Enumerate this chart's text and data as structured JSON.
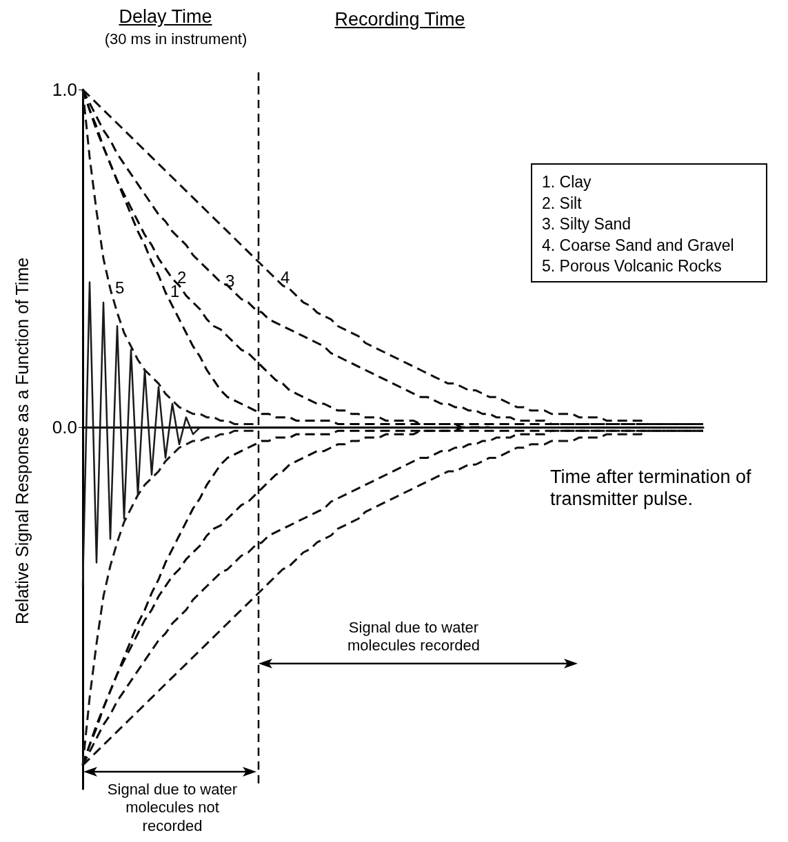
{
  "chart_data": {
    "type": "line",
    "xlabel": "Time after termination of transmitter pulse.",
    "ylabel": "Relative Signal Response as a Function of Time",
    "annotations": [
      "Delay Time",
      "(30 ms in instrument)",
      "Recording Time",
      "Signal due to water molecules recorded",
      "Signal due to water molecules not recorded",
      "1.  Clay",
      "2.  Silt",
      "3.  Silty Sand",
      "4.  Coarse Sand and Gravel",
      "5.  Porous Volcanic Rocks"
    ],
    "categories": [
      null,
      null,
      null,
      null,
      null,
      null,
      null,
      null,
      null,
      null,
      null,
      null,
      null,
      null,
      null,
      null,
      null,
      null,
      null,
      null,
      null,
      null,
      null,
      null,
      null,
      null,
      null,
      null,
      null,
      null,
      null,
      null,
      null,
      null,
      null,
      null,
      null,
      null,
      null,
      null,
      null,
      null,
      null,
      null,
      null,
      null,
      null,
      null,
      null,
      null,
      null,
      null,
      null,
      null,
      null,
      null,
      null,
      null,
      null,
      null,
      null,
      null,
      null,
      null,
      null,
      null,
      null,
      null,
      null,
      null,
      null,
      null,
      null,
      null,
      null,
      null,
      null,
      null,
      null,
      null,
      null,
      null,
      null,
      null,
      null,
      null,
      null,
      null,
      null,
      null,
      null
    ],
    "ylim": [
      -1.07,
      1.0
    ],
    "yticks": [
      {
        "value": 0,
        "label": "0.0"
      },
      {
        "value": 1,
        "label": "1.0"
      }
    ],
    "tick_labels": "y",
    "grid": false,
    "legend": false,
    "marker": "none",
    "series": [
      {
        "name": "1",
        "color": "#000000",
        "line_style": "dashed",
        "values": [
          1.0,
          0.94,
          0.89,
          0.83,
          0.78,
          0.73,
          0.68,
          0.63,
          0.58,
          0.54,
          0.49,
          0.45,
          0.4,
          0.36,
          0.32,
          0.28,
          0.24,
          0.21,
          0.17,
          0.14,
          0.11,
          0.09,
          0.08,
          0.07,
          0.06,
          0.05,
          0.04,
          0.04,
          0.03,
          0.03,
          0.03,
          0.02,
          0.02,
          0.02,
          0.02,
          0.02,
          0.02,
          0.01,
          0.01,
          0.01,
          0.01,
          0.01,
          0.01,
          0.01,
          0.01,
          0.01,
          0.01,
          0.01,
          0.01,
          0.01,
          0.01,
          0.01,
          0.01,
          0.01,
          0.01,
          0,
          0,
          0,
          0,
          0,
          null,
          null,
          null,
          null,
          null,
          null,
          null,
          null,
          null,
          null,
          null,
          null,
          null,
          null,
          null,
          null,
          null,
          null,
          null,
          null,
          null,
          null,
          null,
          null,
          null,
          null,
          null,
          null,
          null,
          null,
          null
        ]
      },
      {
        "name": "2",
        "color": "#050505",
        "line_style": "dashed",
        "values": [
          1.0,
          0.94,
          0.88,
          0.83,
          0.78,
          0.73,
          0.69,
          0.65,
          0.61,
          0.57,
          0.54,
          0.5,
          0.47,
          0.44,
          0.42,
          0.39,
          0.37,
          0.35,
          0.32,
          0.3,
          0.29,
          0.27,
          0.25,
          0.23,
          0.22,
          0.2,
          0.18,
          0.16,
          0.14,
          0.13,
          0.11,
          0.1,
          0.09,
          0.08,
          0.07,
          0.07,
          0.06,
          0.05,
          0.05,
          0.04,
          0.04,
          0.03,
          0.03,
          0.03,
          0.02,
          0.02,
          0.02,
          0.02,
          0.02,
          0.01,
          0.01,
          0.01,
          0.01,
          0.01,
          0.01,
          0.01,
          0.01,
          0.01,
          0.01,
          0.01,
          0.01,
          0.01,
          0.01,
          0.01,
          0.01,
          0.01,
          0.01,
          0.01,
          0.01,
          0.01,
          0.01,
          0.01,
          0.01,
          0.01,
          0.01,
          0.01,
          0.01,
          0.01,
          0.01,
          0.01,
          0.01,
          0.01,
          0.01,
          0.01,
          0.01,
          0.01,
          0.01,
          0.01,
          0.01,
          0.01,
          0.01
        ]
      },
      {
        "name": "3",
        "color": "#0a0a0a",
        "line_style": "dashed",
        "values": [
          1.0,
          0.96,
          0.92,
          0.88,
          0.85,
          0.81,
          0.78,
          0.75,
          0.72,
          0.69,
          0.66,
          0.63,
          0.61,
          0.58,
          0.56,
          0.54,
          0.51,
          0.49,
          0.47,
          0.45,
          0.43,
          0.42,
          0.4,
          0.38,
          0.37,
          0.35,
          0.34,
          0.32,
          0.31,
          0.3,
          0.29,
          0.28,
          0.27,
          0.26,
          0.25,
          0.24,
          0.22,
          0.21,
          0.2,
          0.19,
          0.18,
          0.17,
          0.16,
          0.15,
          0.14,
          0.13,
          0.12,
          0.11,
          0.1,
          0.09,
          0.09,
          0.08,
          0.07,
          0.07,
          0.06,
          0.06,
          0.05,
          0.05,
          0.04,
          0.04,
          0.03,
          0.03,
          0.03,
          0.02,
          0.02,
          0.02,
          0.02,
          0.02,
          0.01,
          0.01,
          0.01,
          0.01,
          0.01,
          0.01,
          0.01,
          0.01,
          0.01,
          0.01,
          0.01,
          0.01,
          0.01,
          0.01,
          0.01,
          0.01,
          0.01,
          0.01,
          0.01,
          0.01,
          0.01,
          0.01,
          0.01
        ]
      },
      {
        "name": "4",
        "color": "#0f0f0f",
        "line_style": "dashed",
        "values": [
          1.0,
          0.98,
          0.96,
          0.94,
          0.92,
          0.9,
          0.88,
          0.86,
          0.84,
          0.82,
          0.8,
          0.78,
          0.76,
          0.74,
          0.72,
          0.7,
          0.68,
          0.66,
          0.64,
          0.62,
          0.6,
          0.58,
          0.56,
          0.54,
          0.52,
          0.5,
          0.48,
          0.46,
          0.44,
          0.42,
          0.41,
          0.39,
          0.37,
          0.36,
          0.34,
          0.33,
          0.32,
          0.3,
          0.29,
          0.28,
          0.27,
          0.25,
          0.24,
          0.23,
          0.22,
          0.21,
          0.2,
          0.19,
          0.18,
          0.17,
          0.16,
          0.15,
          0.14,
          0.13,
          0.13,
          0.12,
          0.11,
          0.11,
          0.1,
          0.09,
          0.09,
          0.08,
          0.07,
          0.06,
          0.06,
          0.05,
          0.05,
          0.05,
          0.04,
          0.04,
          0.04,
          0.04,
          0.03,
          0.03,
          0.03,
          0.03,
          0.02,
          0.02,
          0.02,
          0.02,
          0.02,
          0.02,
          0.01,
          0.01,
          0.01,
          0.01,
          0.01,
          0.01,
          0.01,
          0.01,
          0.01
        ]
      },
      {
        "name": "5",
        "color": "#141414",
        "line_style": "dashed",
        "values": [
          1.0,
          0.8,
          0.64,
          0.5,
          0.41,
          0.34,
          0.28,
          0.24,
          0.2,
          0.17,
          0.15,
          0.13,
          0.1,
          0.08,
          0.06,
          0.05,
          0.04,
          0.04,
          0.03,
          0.03,
          0.02,
          0.02,
          0.01,
          0.01,
          0.01,
          0.01,
          null,
          null,
          null,
          null,
          null,
          null,
          null,
          null,
          null,
          null,
          null,
          null,
          null,
          null,
          null,
          null,
          null,
          null,
          null,
          null,
          null,
          null,
          null,
          null,
          null,
          null,
          null,
          null,
          null,
          null,
          null,
          null,
          null,
          null,
          null,
          null,
          null,
          null,
          null,
          null,
          null,
          null,
          null,
          null,
          null,
          null,
          null,
          null,
          null,
          null,
          null,
          null,
          null,
          null,
          null,
          null,
          null,
          null,
          null,
          null,
          null,
          null,
          null,
          null,
          null
        ]
      },
      {
        "color": "#030303",
        "line_style": "dashed",
        "values": [
          -1.0,
          -0.94,
          -0.89,
          -0.83,
          -0.78,
          -0.73,
          -0.68,
          -0.63,
          -0.58,
          -0.54,
          -0.49,
          -0.45,
          -0.4,
          -0.36,
          -0.32,
          -0.28,
          -0.24,
          -0.21,
          -0.17,
          -0.14,
          -0.11,
          -0.09,
          -0.08,
          -0.07,
          -0.06,
          -0.05,
          -0.04,
          -0.04,
          -0.03,
          -0.03,
          -0.03,
          -0.02,
          -0.02,
          -0.02,
          -0.02,
          -0.02,
          -0.02,
          -0.01,
          -0.01,
          -0.01,
          -0.01,
          -0.01,
          -0.01,
          -0.01,
          -0.01,
          -0.01,
          -0.01,
          -0.01,
          -0.01,
          -0.01,
          -0.01,
          -0.01,
          -0.01,
          -0.01,
          -0.01,
          0,
          0,
          0,
          0,
          0,
          null,
          null,
          null,
          null,
          null,
          null,
          null,
          null,
          null,
          null,
          null,
          null,
          null,
          null,
          null,
          null,
          null,
          null,
          null,
          null,
          null,
          null,
          null,
          null,
          null,
          null,
          null,
          null,
          null,
          null,
          null
        ]
      },
      {
        "color": "#080808",
        "line_style": "dashed",
        "values": [
          -1.0,
          -0.94,
          -0.88,
          -0.83,
          -0.78,
          -0.73,
          -0.69,
          -0.65,
          -0.61,
          -0.57,
          -0.54,
          -0.5,
          -0.47,
          -0.44,
          -0.42,
          -0.39,
          -0.37,
          -0.35,
          -0.32,
          -0.3,
          -0.29,
          -0.27,
          -0.25,
          -0.23,
          -0.22,
          -0.2,
          -0.18,
          -0.16,
          -0.14,
          -0.13,
          -0.11,
          -0.1,
          -0.09,
          -0.08,
          -0.07,
          -0.07,
          -0.06,
          -0.05,
          -0.05,
          -0.04,
          -0.04,
          -0.03,
          -0.03,
          -0.03,
          -0.02,
          -0.02,
          -0.02,
          -0.02,
          -0.02,
          -0.01,
          -0.01,
          -0.01,
          -0.01,
          -0.01,
          -0.01,
          -0.01,
          -0.01,
          -0.01,
          -0.01,
          -0.01,
          -0.01,
          -0.01,
          -0.01,
          -0.01,
          -0.01,
          -0.01,
          -0.01,
          -0.01,
          -0.01,
          -0.01,
          -0.01,
          -0.01,
          -0.01,
          -0.01,
          -0.01,
          -0.01,
          -0.01,
          -0.01,
          -0.01,
          -0.01,
          -0.01,
          -0.01,
          -0.01,
          -0.01,
          -0.01,
          -0.01,
          -0.01,
          -0.01,
          -0.01,
          -0.01,
          -0.01
        ]
      },
      {
        "color": "#0d0d0d",
        "line_style": "dashed",
        "values": [
          -1.0,
          -0.96,
          -0.92,
          -0.88,
          -0.85,
          -0.81,
          -0.78,
          -0.75,
          -0.72,
          -0.69,
          -0.66,
          -0.63,
          -0.61,
          -0.58,
          -0.56,
          -0.54,
          -0.51,
          -0.49,
          -0.47,
          -0.45,
          -0.43,
          -0.42,
          -0.4,
          -0.38,
          -0.37,
          -0.35,
          -0.34,
          -0.32,
          -0.31,
          -0.3,
          -0.29,
          -0.28,
          -0.27,
          -0.26,
          -0.25,
          -0.24,
          -0.22,
          -0.21,
          -0.2,
          -0.19,
          -0.18,
          -0.17,
          -0.16,
          -0.15,
          -0.14,
          -0.13,
          -0.12,
          -0.11,
          -0.1,
          -0.09,
          -0.09,
          -0.08,
          -0.07,
          -0.07,
          -0.06,
          -0.06,
          -0.05,
          -0.05,
          -0.04,
          -0.04,
          -0.03,
          -0.03,
          -0.03,
          -0.02,
          -0.02,
          -0.02,
          -0.02,
          -0.02,
          -0.01,
          -0.01,
          -0.01,
          -0.01,
          -0.01,
          -0.01,
          -0.01,
          -0.01,
          -0.01,
          -0.01,
          -0.01,
          -0.01,
          -0.01,
          -0.01,
          -0.01,
          -0.01,
          -0.01,
          -0.01,
          -0.01,
          -0.01,
          -0.01,
          -0.01,
          -0.01
        ]
      },
      {
        "color": "#121212",
        "line_style": "dashed",
        "values": [
          -1.0,
          -0.98,
          -0.96,
          -0.94,
          -0.92,
          -0.9,
          -0.88,
          -0.86,
          -0.84,
          -0.82,
          -0.8,
          -0.78,
          -0.76,
          -0.74,
          -0.72,
          -0.7,
          -0.68,
          -0.66,
          -0.64,
          -0.62,
          -0.6,
          -0.58,
          -0.56,
          -0.54,
          -0.52,
          -0.5,
          -0.48,
          -0.46,
          -0.44,
          -0.42,
          -0.41,
          -0.39,
          -0.37,
          -0.36,
          -0.34,
          -0.33,
          -0.32,
          -0.3,
          -0.29,
          -0.28,
          -0.27,
          -0.25,
          -0.24,
          -0.23,
          -0.22,
          -0.21,
          -0.2,
          -0.19,
          -0.18,
          -0.17,
          -0.16,
          -0.15,
          -0.14,
          -0.13,
          -0.13,
          -0.12,
          -0.11,
          -0.11,
          -0.1,
          -0.09,
          -0.09,
          -0.08,
          -0.07,
          -0.06,
          -0.06,
          -0.05,
          -0.05,
          -0.05,
          -0.04,
          -0.04,
          -0.04,
          -0.04,
          -0.03,
          -0.03,
          -0.03,
          -0.03,
          -0.02,
          -0.02,
          -0.02,
          -0.02,
          -0.02,
          -0.02,
          -0.01,
          -0.01,
          -0.01,
          -0.01,
          -0.01,
          -0.01,
          -0.01,
          -0.01,
          -0.01
        ]
      },
      {
        "color": "#171717",
        "line_style": "dashed",
        "values": [
          -1.0,
          -0.8,
          -0.64,
          -0.5,
          -0.41,
          -0.34,
          -0.28,
          -0.24,
          -0.2,
          -0.17,
          -0.15,
          -0.13,
          -0.1,
          -0.08,
          -0.06,
          -0.05,
          -0.04,
          -0.04,
          -0.03,
          -0.03,
          -0.02,
          -0.02,
          -0.01,
          -0.01,
          -0.01,
          -0.01,
          null,
          null,
          null,
          null,
          null,
          null,
          null,
          null,
          null,
          null,
          null,
          null,
          null,
          null,
          null,
          null,
          null,
          null,
          null,
          null,
          null,
          null,
          null,
          null,
          null,
          null,
          null,
          null,
          null,
          null,
          null,
          null,
          null,
          null,
          null,
          null,
          null,
          null,
          null,
          null,
          null,
          null,
          null,
          null,
          null,
          null,
          null,
          null,
          null,
          null,
          null,
          null,
          null,
          null,
          null,
          null,
          null,
          null,
          null,
          null,
          null,
          null,
          null,
          null,
          null
        ]
      },
      {
        "color": "#1a1a1a",
        "line_style": "solid",
        "values": [
          -0.47,
          0.43,
          -0.4,
          0.37,
          -0.33,
          0.3,
          -0.27,
          0.23,
          -0.2,
          0.17,
          -0.14,
          0.12,
          -0.09,
          0.07,
          -0.05,
          0.03,
          -0.02,
          0,
          null,
          null,
          null,
          null,
          null,
          null,
          null,
          null,
          null,
          null,
          null,
          null,
          null,
          null,
          null,
          null,
          null,
          null,
          null,
          null,
          null,
          null,
          null,
          null,
          null,
          null,
          null,
          null,
          null,
          null,
          null,
          null,
          null,
          null,
          null,
          null,
          null,
          null,
          null,
          null,
          null,
          null,
          null,
          null,
          null,
          null,
          null,
          null,
          null,
          null,
          null,
          null,
          null,
          null,
          null,
          null,
          null,
          null,
          null,
          null,
          null,
          null,
          null,
          null,
          null,
          null,
          null,
          null,
          null,
          null,
          null,
          null,
          null
        ]
      }
    ]
  }
}
